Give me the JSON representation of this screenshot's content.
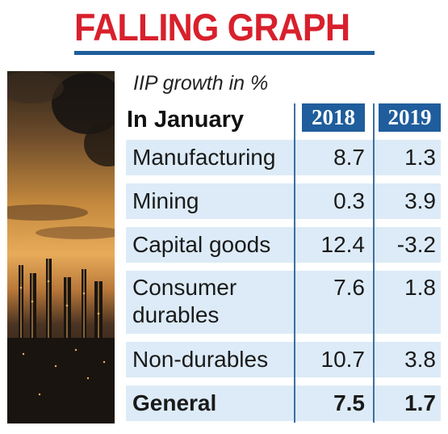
{
  "header": {
    "title": "FALLING GRAPH"
  },
  "table": {
    "subtitle": "IIP growth in %",
    "row_header": "In January",
    "years": [
      "2018",
      "2019"
    ],
    "rows": [
      {
        "label": "Manufacturing",
        "v2018": "8.7",
        "v2019": "1.3"
      },
      {
        "label": "Mining",
        "v2018": "0.3",
        "v2019": "3.9"
      },
      {
        "label": "Capital goods",
        "v2018": "12.4",
        "v2019": "-3.2"
      },
      {
        "label": "Consumer",
        "label2": "durables",
        "v2018": "7.6",
        "v2019": "1.8"
      },
      {
        "label": "Non-durables",
        "v2018": "10.7",
        "v2019": "3.8"
      },
      {
        "label": "General",
        "v2018": "7.5",
        "v2019": "1.7"
      }
    ]
  },
  "chart_data": {
    "type": "table",
    "title": "FALLING GRAPH",
    "subtitle": "IIP growth in %",
    "row_header": "In January",
    "columns": [
      "2018",
      "2019"
    ],
    "rows": [
      {
        "category": "Manufacturing",
        "values": [
          8.7,
          1.3
        ]
      },
      {
        "category": "Mining",
        "values": [
          0.3,
          3.9
        ]
      },
      {
        "category": "Capital goods",
        "values": [
          12.4,
          -3.2
        ]
      },
      {
        "category": "Consumer durables",
        "values": [
          7.6,
          1.8
        ]
      },
      {
        "category": "Non-durables",
        "values": [
          10.7,
          3.8
        ]
      },
      {
        "category": "General",
        "values": [
          7.5,
          1.7
        ]
      }
    ]
  },
  "colors": {
    "title": "#d8202c",
    "accent_blue": "#1f5d9c",
    "row_fill": "#dcebf7"
  }
}
